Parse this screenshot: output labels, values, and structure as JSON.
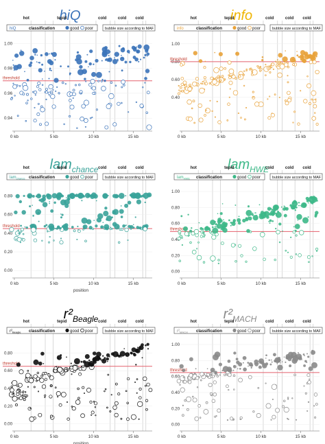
{
  "figure": {
    "zone_labels": [
      "hot",
      "tepid",
      "cold",
      "cold",
      "cold"
    ],
    "legend_good": "good",
    "legend_poor": "poor",
    "legend_suffix": "classification",
    "size_note": "bubble size according to MAF",
    "threshold_label": "threshold"
  },
  "chart_data": [
    {
      "type": "scatter",
      "title": "hiQ",
      "title_sub": "",
      "legend_name": "hiQ",
      "legend_sub": "",
      "color": "#3b73b9",
      "title_color": "#3b73b9",
      "xlabel": "position",
      "xlim": [
        -0.6,
        17.4
      ],
      "ylim": [
        0.928,
        1.004
      ],
      "x_ticks": [
        0,
        5,
        10,
        15
      ],
      "x_tick_labels": [
        "0 kb",
        "5 kb",
        "10 kb",
        "15 kb"
      ],
      "y_ticks": [
        0.94,
        0.96,
        0.98,
        1.0
      ],
      "y_tick_labels": [
        "0.94",
        "0.96",
        "0.98",
        "1.00"
      ],
      "threshold": 0.97,
      "grid": "vertical",
      "x_axis_label_shown": false
    },
    {
      "type": "scatter",
      "title": "info",
      "title_sub": "",
      "legend_name": "info",
      "legend_sub": "",
      "color": "#e8a23a",
      "title_color": "#efb400",
      "xlabel": "position",
      "xlim": [
        -0.6,
        17.4
      ],
      "ylim": [
        0.0,
        1.06
      ],
      "x_ticks": [
        0,
        5,
        10,
        15
      ],
      "x_tick_labels": [
        "0 kb",
        "5 kb",
        "10 kb",
        "15 kb"
      ],
      "y_ticks": [
        0.4,
        0.6,
        0.8,
        1.0
      ],
      "y_tick_labels": [
        "0.40",
        "0.60",
        "0.80",
        "1.00"
      ],
      "threshold": 0.8,
      "grid": "vertical",
      "x_axis_label_shown": false
    },
    {
      "type": "scatter",
      "title": "lam",
      "title_sub": "chance",
      "legend_name": "lam",
      "legend_sub": "chance",
      "color": "#3aa39a",
      "title_color": "#3aa39a",
      "xlabel": "position",
      "xlim": [
        -0.6,
        17.4
      ],
      "ylim": [
        -0.08,
        0.9
      ],
      "x_ticks": [
        0,
        5,
        10,
        15
      ],
      "x_tick_labels": [
        "0 kb",
        "5 kb",
        "10 kb",
        "15 kb"
      ],
      "y_ticks": [
        0.0,
        0.2,
        0.4,
        0.6,
        0.8
      ],
      "y_tick_labels": [
        "0.00",
        "0.20",
        "0.40",
        "0.60",
        "0.80"
      ],
      "threshold": 0.45,
      "grid": "vertical",
      "x_axis_label_shown": true
    },
    {
      "type": "scatter",
      "title": "lam",
      "title_sub": "HWE",
      "legend_name": "lam",
      "legend_sub": "HWE",
      "color": "#3db888",
      "title_color": "#3db888",
      "xlabel": "position",
      "xlim": [
        -0.6,
        17.4
      ],
      "ylim": [
        -0.08,
        1.06
      ],
      "x_ticks": [
        0,
        5,
        10,
        15
      ],
      "x_tick_labels": [
        "0 kb",
        "5 kb",
        "10 kb",
        "15 kb"
      ],
      "y_ticks": [
        0.0,
        0.2,
        0.4,
        0.6,
        0.8,
        1.0
      ],
      "y_tick_labels": [
        "0.00",
        "0.20",
        "0.40",
        "0.60",
        "0.80",
        "1.00"
      ],
      "threshold": 0.5,
      "grid": "vertical",
      "x_axis_label_shown": false
    },
    {
      "type": "scatter",
      "title": "r²",
      "title_sub": "Beagle",
      "legend_name": "r²",
      "legend_sub": "Beagle",
      "color": "#111111",
      "title_color": "#000000",
      "xlabel": "position",
      "xlim": [
        -0.6,
        17.4
      ],
      "ylim": [
        -0.08,
        0.95
      ],
      "x_ticks": [
        0,
        5,
        10,
        15
      ],
      "x_tick_labels": [
        "0 kb",
        "5 kb",
        "10 kb",
        "15 kb"
      ],
      "y_ticks": [
        0.0,
        0.2,
        0.4,
        0.6,
        0.8
      ],
      "y_tick_labels": [
        "0.00",
        "0.20",
        "0.40",
        "0.60",
        "0.80"
      ],
      "threshold": 0.65,
      "grid": "vertical",
      "x_axis_label_shown": true
    },
    {
      "type": "scatter",
      "title": "r²",
      "title_sub": "MACH",
      "legend_name": "r²",
      "legend_sub": "MACH",
      "color": "#8a8a8a",
      "title_color": "#8a8a8a",
      "xlabel": "position",
      "xlim": [
        -0.6,
        17.4
      ],
      "ylim": [
        -0.08,
        1.06
      ],
      "x_ticks": [
        0,
        5,
        10,
        15
      ],
      "x_tick_labels": [
        "0 kb",
        "5 kb",
        "10 kb",
        "15 kb"
      ],
      "y_ticks": [
        0.0,
        0.2,
        0.4,
        0.6,
        0.8,
        1.0
      ],
      "y_tick_labels": [
        "0.00",
        "0.20",
        "0.40",
        "0.60",
        "0.80",
        "1.00"
      ],
      "threshold": 0.65,
      "grid": "vertical",
      "x_axis_label_shown": false
    }
  ]
}
